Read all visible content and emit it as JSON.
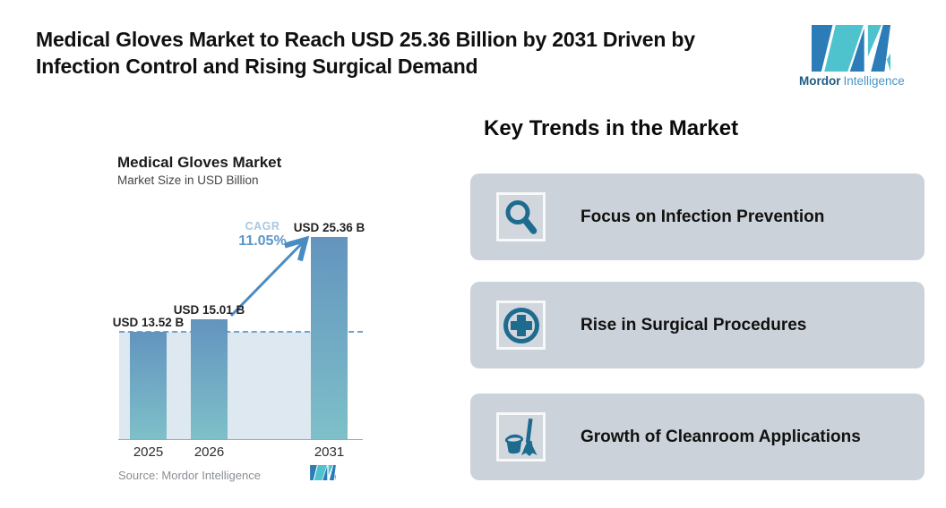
{
  "header": {
    "title_lines": [
      "Medical Gloves Market to Reach USD 25.36 Billion by 2031 Driven by",
      "Infection Control and Rising Surgical Demand"
    ],
    "brand": {
      "name_bold": "Mordor",
      "name_light": "Intelligence"
    }
  },
  "chart_data": {
    "type": "bar",
    "title": "Medical Gloves Market",
    "subtitle": "Market Size in USD Billion",
    "categories": [
      "2025",
      "2026",
      "2031"
    ],
    "values": [
      13.52,
      15.01,
      25.36
    ],
    "unit": "USD Billion",
    "value_labels": [
      "USD 13.52 B",
      "USD 15.01 B",
      "USD 25.36 B"
    ],
    "annotations": {
      "cagr_label": "CAGR",
      "cagr_value": "11.05%"
    },
    "reference_line": {
      "style": "dashed",
      "value": 13.52
    },
    "xlabel": "",
    "ylabel": "",
    "ylim": [
      0,
      26
    ],
    "grid": false,
    "legend": false,
    "source": "Source: Mordor Intelligence"
  },
  "trends": {
    "heading": "Key Trends in the Market",
    "items": [
      {
        "icon": "search-icon",
        "label": "Focus on Infection Prevention"
      },
      {
        "icon": "medical-cross-icon",
        "label": "Rise in Surgical Procedures"
      },
      {
        "icon": "cleaning-broom-icon",
        "label": "Growth of Cleanroom Applications"
      }
    ]
  },
  "colors": {
    "icon_teal": "#1E6B90",
    "card_bg": "#CCD2D9",
    "bar_gradient_top": "#6394BE",
    "bar_gradient_bottom": "#7EC0C9",
    "area_fill": "#DEE8F0",
    "dashed_line": "#6FA3CF",
    "arrow": "#4A8BC2",
    "cagr_label": "#A9C7E2",
    "cagr_value": "#5C96C8",
    "logo_teal": "#4EC3CD",
    "logo_blue": "#2C7CB8"
  }
}
